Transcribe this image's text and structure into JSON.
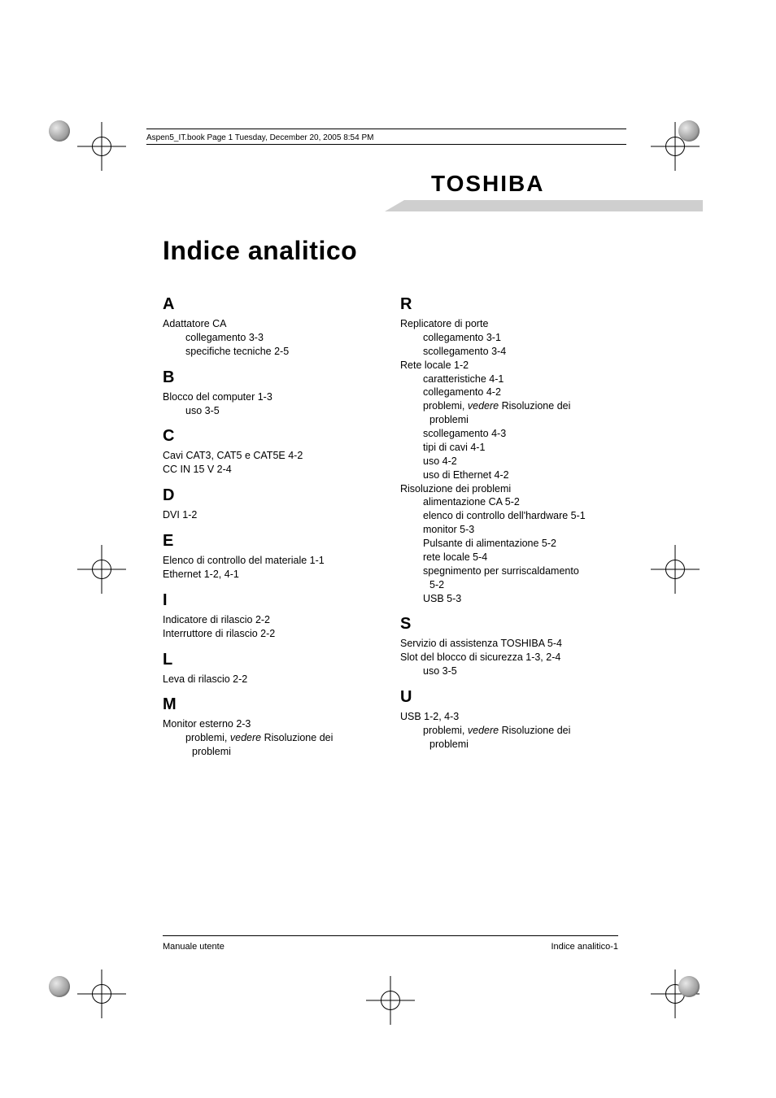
{
  "meta": {
    "header_line": "Aspen5_IT.book  Page 1  Tuesday, December 20, 2005  8:54 PM"
  },
  "logo_text": "TOSHIBA",
  "title": "Indice analitico",
  "footer": {
    "left": "Manuale utente",
    "right": "Indice analitico-1"
  },
  "index": {
    "left": [
      {
        "letter": "A",
        "entries": [
          {
            "t": "Adattatore CA",
            "subs": [
              {
                "t": "collegamento 3-3"
              },
              {
                "t": "specifiche tecniche 2-5"
              }
            ]
          }
        ]
      },
      {
        "letter": "B",
        "entries": [
          {
            "t": "Blocco del computer 1-3",
            "subs": [
              {
                "t": "uso 3-5"
              }
            ]
          }
        ]
      },
      {
        "letter": "C",
        "entries": [
          {
            "t": "Cavi CAT3, CAT5 e CAT5E 4-2"
          },
          {
            "t": "CC IN 15 V 2-4"
          }
        ]
      },
      {
        "letter": "D",
        "entries": [
          {
            "t": "DVI 1-2"
          }
        ]
      },
      {
        "letter": "E",
        "entries": [
          {
            "t": "Elenco di controllo del materiale 1-1"
          },
          {
            "t": "Ethernet 1-2, 4-1"
          }
        ]
      },
      {
        "letter": "I",
        "entries": [
          {
            "t": "Indicatore di rilascio 2-2"
          },
          {
            "t": "Interruttore di rilascio 2-2"
          }
        ]
      },
      {
        "letter": "L",
        "entries": [
          {
            "t": "Leva di rilascio 2-2"
          }
        ]
      },
      {
        "letter": "M",
        "entries": [
          {
            "t": "Monitor esterno 2-3",
            "subs": [
              {
                "t_pre": "problemi, ",
                "t_ital": "vedere",
                "t_post": " Risoluzione dei"
              },
              {
                "t": "problemi",
                "extra_indent": true
              }
            ]
          }
        ]
      }
    ],
    "right": [
      {
        "letter": "R",
        "entries": [
          {
            "t": "Replicatore di porte",
            "subs": [
              {
                "t": "collegamento 3-1"
              },
              {
                "t": "scollegamento 3-4"
              }
            ]
          },
          {
            "t": "Rete locale 1-2",
            "subs": [
              {
                "t": "caratteristiche 4-1"
              },
              {
                "t": "collegamento 4-2"
              },
              {
                "t_pre": "problemi, ",
                "t_ital": "vedere",
                "t_post": " Risoluzione dei"
              },
              {
                "t": "problemi",
                "extra_indent": true
              },
              {
                "t": "scollegamento 4-3"
              },
              {
                "t": "tipi di cavi 4-1"
              },
              {
                "t": "uso 4-2"
              },
              {
                "t": "uso di Ethernet 4-2"
              }
            ]
          },
          {
            "t": "Risoluzione dei problemi",
            "subs": [
              {
                "t": "alimentazione CA 5-2"
              },
              {
                "t": "elenco di controllo dell'hardware 5-1"
              },
              {
                "t": "monitor 5-3"
              },
              {
                "t": "Pulsante di alimentazione 5-2"
              },
              {
                "t": "rete locale 5-4"
              },
              {
                "t": "spegnimento per surriscaldamento"
              },
              {
                "t": "5-2",
                "extra_indent": true
              },
              {
                "t": "USB 5-3"
              }
            ]
          }
        ]
      },
      {
        "letter": "S",
        "entries": [
          {
            "t": "Servizio di assistenza TOSHIBA 5-4"
          },
          {
            "t": "Slot del blocco di sicurezza 1-3, 2-4",
            "subs": [
              {
                "t": "uso 3-5"
              }
            ]
          }
        ]
      },
      {
        "letter": "U",
        "entries": [
          {
            "t": "USB 1-2, 4-3",
            "subs": [
              {
                "t_pre": "problemi, ",
                "t_ital": "vedere",
                "t_post": " Risoluzione dei"
              },
              {
                "t": "problemi",
                "extra_indent": true
              }
            ]
          }
        ]
      }
    ]
  },
  "style": {
    "page_bg": "#ffffff",
    "text_color": "#000000",
    "grey_bar_color": "#cfcfcf",
    "title_fontsize": 32,
    "letter_fontsize": 20,
    "body_fontsize": 12.5,
    "footer_fontsize": 11,
    "meta_fontsize": 10
  }
}
